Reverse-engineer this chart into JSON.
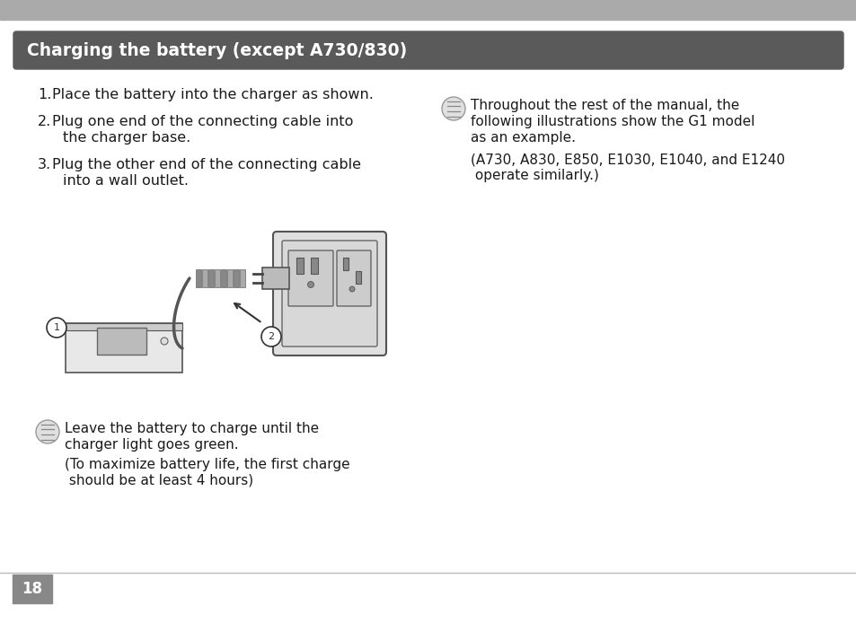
{
  "bg_color": "#ffffff",
  "top_bar_color": "#aaaaaa",
  "header_bg_color": "#5a5a5a",
  "header_text": "Charging the battery (except A730/830)",
  "header_text_color": "#ffffff",
  "header_fontsize": 13.5,
  "page_number": "18",
  "page_number_bg": "#888888",
  "page_number_color": "#ffffff",
  "body_text_color": "#1a1a1a",
  "body_fontsize": 11.5,
  "note_fontsize": 11.0,
  "item1": "Place the battery into the charger as shown.",
  "item2_line1": "Plug one end of the connecting cable into",
  "item2_line2": "the charger base.",
  "item3_line1": "Plug the other end of the connecting cable",
  "item3_line2": "into a wall outlet.",
  "note1_line1": "Leave the battery to charge until the",
  "note1_line2": "charger light goes green.",
  "note1_line3": "(To maximize battery life, the first charge",
  "note1_line4": " should be at least 4 hours)",
  "note2_line1": "Throughout the rest of the manual, the",
  "note2_line2": "following illustrations show the G1 model",
  "note2_line3": "as an example.",
  "note2_line4": "(A730, A830, E850, E1030, E1040, and E1240",
  "note2_line5": " operate similarly.)"
}
